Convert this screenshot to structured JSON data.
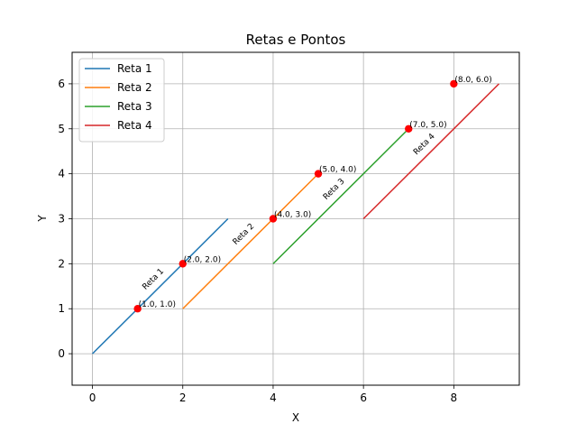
{
  "chart_data": {
    "type": "line",
    "title": "Retas e Pontos",
    "xlabel": "X",
    "ylabel": "Y",
    "xlim": [
      -0.45,
      9.45
    ],
    "ylim": [
      -0.7,
      6.7
    ],
    "xticks": [
      0,
      2,
      4,
      6,
      8
    ],
    "yticks": [
      0,
      1,
      2,
      3,
      4,
      5,
      6
    ],
    "grid": true,
    "legend_position": "top-left",
    "series": [
      {
        "name": "Reta 1",
        "color": "#1f77b4",
        "x": [
          0,
          3
        ],
        "y": [
          0,
          3
        ],
        "line_label": "Reta 1",
        "label_at": [
          1.5,
          1.5
        ]
      },
      {
        "name": "Reta 2",
        "color": "#ff7f0e",
        "x": [
          2,
          5
        ],
        "y": [
          1,
          4
        ],
        "line_label": "Reta 2",
        "label_at": [
          3.5,
          2.5
        ]
      },
      {
        "name": "Reta 3",
        "color": "#2ca02c",
        "x": [
          4,
          7
        ],
        "y": [
          2,
          5
        ],
        "line_label": "Reta 3",
        "label_at": [
          5.5,
          3.5
        ]
      },
      {
        "name": "Reta 4",
        "color": "#d62728",
        "x": [
          6,
          9
        ],
        "y": [
          3,
          6
        ],
        "line_label": "Reta 4",
        "label_at": [
          7.5,
          4.5
        ]
      }
    ],
    "points": [
      {
        "x": 1.0,
        "y": 1.0,
        "label": "(1.0, 1.0)"
      },
      {
        "x": 2.0,
        "y": 2.0,
        "label": "(2.0, 2.0)"
      },
      {
        "x": 4.0,
        "y": 3.0,
        "label": "(4.0, 3.0)"
      },
      {
        "x": 5.0,
        "y": 4.0,
        "label": "(5.0, 4.0)"
      },
      {
        "x": 7.0,
        "y": 5.0,
        "label": "(7.0, 5.0)"
      },
      {
        "x": 8.0,
        "y": 6.0,
        "label": "(8.0, 6.0)"
      }
    ],
    "point_color": "#ff0000"
  }
}
